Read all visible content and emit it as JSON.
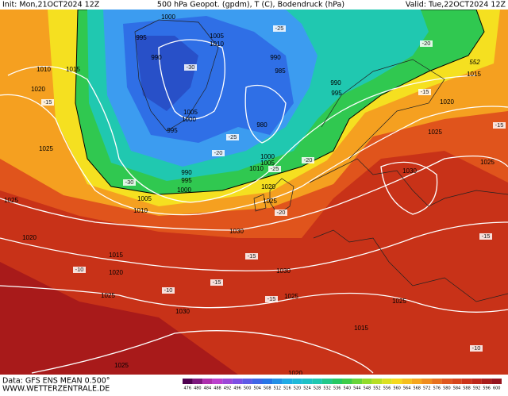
{
  "header": {
    "init": "Init: Mon,21OCT2024 12Z",
    "title": "500 hPa Geopot. (gpdm), T (C), Bodendruck (hPa)",
    "valid": "Valid: Tue,22OCT2024 12Z"
  },
  "map": {
    "isobar_labels": [
      1000,
      995,
      1005,
      1010,
      990,
      990,
      985,
      1010,
      1015,
      1020,
      990,
      995,
      1005,
      1000,
      995,
      980,
      1025,
      1000,
      1005,
      1010,
      990,
      995,
      1000,
      1020,
      1005,
      1010,
      1025,
      1025,
      1030,
      1020,
      1025,
      1025,
      1015,
      1030,
      1020,
      1015,
      1020,
      1030,
      1025,
      1025,
      1025,
      1030,
      1015,
      1025,
      1020
    ],
    "temperature_labels": [
      -25,
      -30,
      -20,
      -15,
      -25,
      -20,
      -30,
      -25,
      -20,
      -15,
      -15,
      -20,
      -15,
      -10,
      -15,
      -10,
      -15,
      -15,
      -10
    ],
    "geopotential_label": 552
  },
  "footer": {
    "source": "Data: GFS ENS MEAN 0.500°",
    "site": "WWW.WETTERZENTRALE.DE",
    "colorbar_labels": [
      476,
      480,
      484,
      488,
      492,
      496,
      500,
      504,
      508,
      512,
      516,
      520,
      524,
      528,
      532,
      536,
      540,
      544,
      548,
      552,
      556,
      560,
      564,
      568,
      572,
      576,
      580,
      584,
      588,
      592,
      596,
      600
    ]
  }
}
